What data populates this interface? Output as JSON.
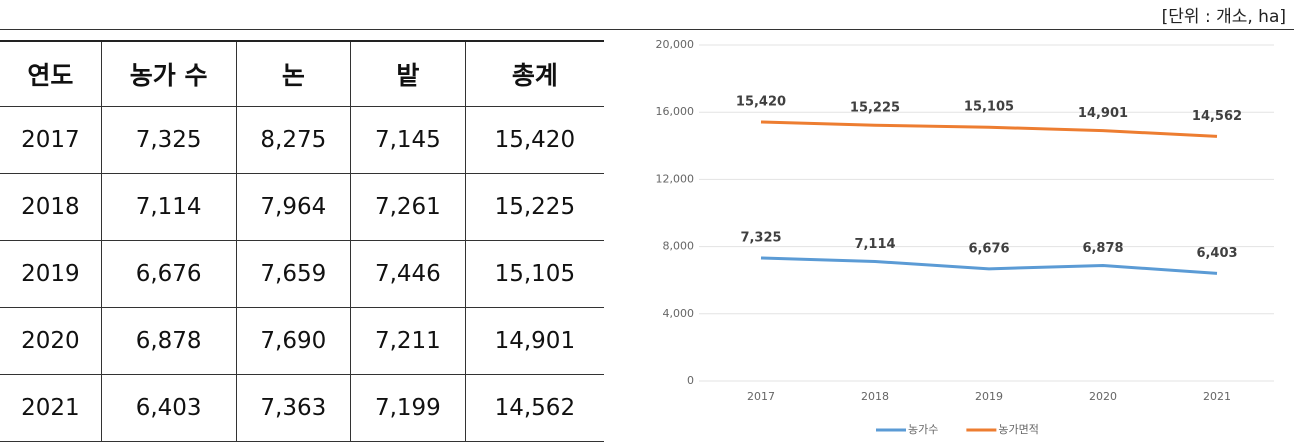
{
  "unit": "[단위 : 개소, ha]",
  "table": {
    "header": [
      "연도",
      "농가 수",
      "논",
      "밭",
      "총계"
    ],
    "rows": [
      [
        "2017",
        "7,325",
        "8,275",
        "7,145",
        "15,420"
      ],
      [
        "2018",
        "7,114",
        "7,964",
        "7,261",
        "15,225"
      ],
      [
        "2019",
        "6,676",
        "7,659",
        "7,446",
        "15,105"
      ],
      [
        "2020",
        "6,878",
        "7,690",
        "7,211",
        "14,901"
      ],
      [
        "2021",
        "6,403",
        "7,363",
        "7,199",
        "14,562"
      ]
    ]
  },
  "chart_data": {
    "type": "line",
    "categories": [
      "2017",
      "2018",
      "2019",
      "2020",
      "2021"
    ],
    "series": [
      {
        "name": "농가수",
        "color": "#5b9bd5",
        "values": [
          7325,
          7114,
          6676,
          6878,
          6403
        ],
        "value_labels": [
          "7,325",
          "7,114",
          "6,676",
          "6,878",
          "6,403"
        ]
      },
      {
        "name": "농가면적",
        "color": "#ed7d31",
        "values": [
          15420,
          15225,
          15105,
          14901,
          14562
        ],
        "value_labels": [
          "15,420",
          "15,225",
          "15,105",
          "14,901",
          "14,562"
        ]
      }
    ],
    "ylim": [
      0,
      20000
    ],
    "yticks": [
      0,
      {
        "value": 4000,
        "label": "4,000"
      },
      {
        "value": 8000,
        "label": "8,000"
      },
      {
        "value": 12000,
        "label": "12,000"
      },
      {
        "value": 16000,
        "label": "16,000"
      },
      {
        "value": 20000,
        "label": "20,000"
      }
    ],
    "grid": true,
    "legend": "bottom"
  }
}
